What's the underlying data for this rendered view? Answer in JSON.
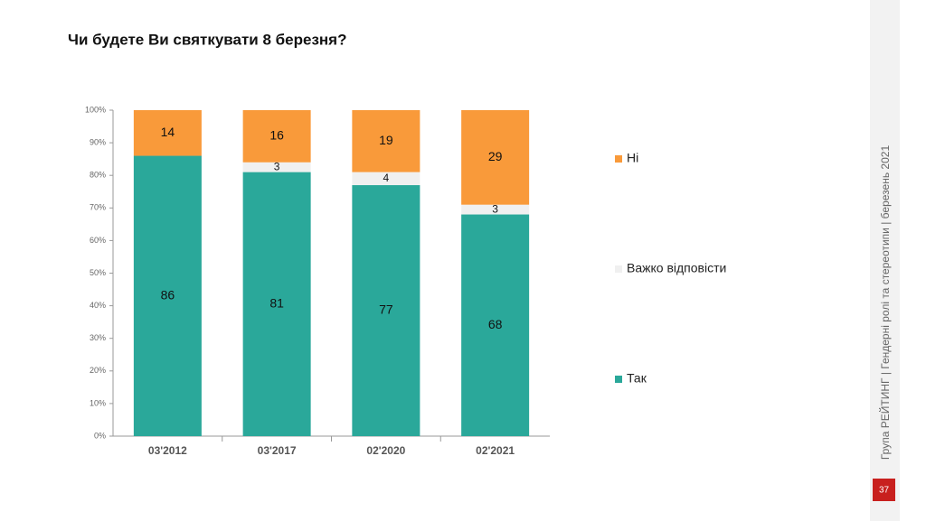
{
  "chart_data": {
    "type": "stacked_bar",
    "title": "Чи будете Ви святкувати 8 березня?",
    "categories": [
      "03'2012",
      "03'2017",
      "02'2020",
      "02'2021"
    ],
    "series": [
      {
        "name": "Так",
        "color": "#2aa89a",
        "values": [
          86,
          81,
          77,
          68
        ]
      },
      {
        "name": "Важко відповісти",
        "color": "#f0f0f0",
        "values": [
          null,
          3,
          4,
          3
        ]
      },
      {
        "name": "Ні",
        "color": "#f99a3a",
        "values": [
          14,
          16,
          19,
          29
        ]
      }
    ],
    "ylim": [
      0,
      100
    ],
    "yticks": [
      {
        "value": 0,
        "label": "0%"
      },
      {
        "value": 10,
        "label": "10%"
      },
      {
        "value": 20,
        "label": "20%"
      },
      {
        "value": 30,
        "label": "30%"
      },
      {
        "value": 40,
        "label": "40%"
      },
      {
        "value": 50,
        "label": "50%"
      },
      {
        "value": 60,
        "label": "60%"
      },
      {
        "value": 70,
        "label": "70%"
      },
      {
        "value": 80,
        "label": "80%"
      },
      {
        "value": 90,
        "label": "90%"
      },
      {
        "value": 100,
        "label": "100%"
      }
    ],
    "grid": false,
    "legend": "right"
  },
  "slide": {
    "side_note": "Група РЕЙТИНГ | Гендерні ролі та стереотипи | березень 2021",
    "page_number": 37
  }
}
